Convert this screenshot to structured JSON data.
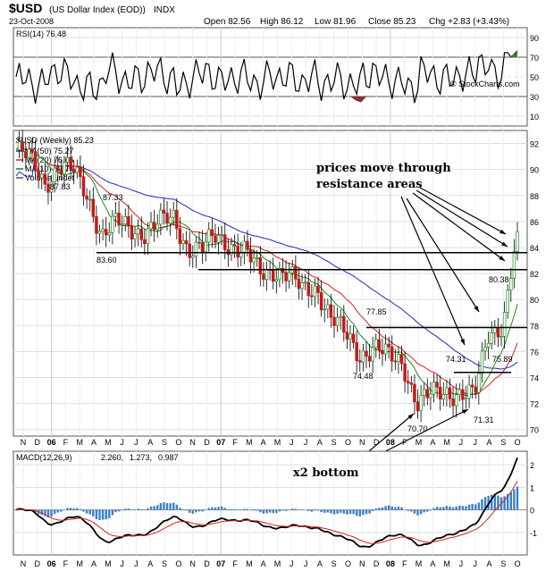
{
  "header": {
    "symbol": "$USD",
    "name": "(US Dollar Index (EOD))",
    "exchange": "INDX",
    "date": "23-Oct-2008",
    "open": "Open 82.56",
    "high": "High 86.12",
    "low": "Low 81.96",
    "close": "Close 85.23",
    "chg": "Chg +2.83 (+3.43%)",
    "watermark": "© StockCharts.com"
  },
  "rsi_panel": {
    "label": "RSI(14) 76.48",
    "ticks": [
      "90",
      "70",
      "50",
      "30",
      "10"
    ]
  },
  "price_panel": {
    "title": "$USD (Weekly) 85.23",
    "legend": [
      {
        "label": "MA(50) 75.27",
        "color": "#1f2bb8"
      },
      {
        "label": "MA(20) 76.65",
        "color": "#d62020"
      },
      {
        "label": "MA(10) 79.74",
        "color": "#1c8a1c"
      },
      {
        "label": "Volume undef",
        "color": "#555555"
      }
    ],
    "ticks": [
      "92",
      "90",
      "88",
      "86",
      "84",
      "82",
      "80",
      "78",
      "76",
      "74",
      "72",
      "70"
    ],
    "price_labels": [
      "87.83",
      "87.33",
      "83.60",
      "77.85",
      "74.48",
      "70.70",
      "74.31",
      "71.31",
      "75.89",
      "80.38"
    ],
    "annotation_top": [
      "prices move through",
      "resistance areas"
    ],
    "annotation_bottom": "x2 bottom"
  },
  "macd_panel": {
    "label": "MACD(12,26,9)",
    "v1": "2.260,",
    "v2": "1.273,",
    "v3": "0.987",
    "ticks": [
      "2",
      "1",
      "0",
      "-1"
    ]
  },
  "time_axis": [
    "N",
    "D",
    "06",
    "F",
    "M",
    "A",
    "M",
    "J",
    "J",
    "A",
    "S",
    "O",
    "N",
    "D",
    "07",
    "F",
    "M",
    "A",
    "M",
    "J",
    "J",
    "A",
    "S",
    "O",
    "N",
    "D",
    "08",
    "F",
    "M",
    "A",
    "M",
    "J",
    "J",
    "A",
    "S",
    "O"
  ],
  "colors": {
    "ma50": "#1f2bb8",
    "ma20": "#d62020",
    "ma10": "#1c8a1c",
    "up": "#1c8a1c",
    "down": "#c81818",
    "macd_hist": "#3a7fc8"
  },
  "chart_data": {
    "type": "line",
    "title": "$USD (Weekly)",
    "x_start": "Nov 2005",
    "x_end": "Oct 2008",
    "ylim": [
      69.5,
      93
    ],
    "close": [
      [
        "2005-11",
        91.5
      ],
      [
        "2005-12",
        90.7
      ],
      [
        "2006-01",
        89.0
      ],
      [
        "2006-02",
        90.3
      ],
      [
        "2006-03",
        89.8
      ],
      [
        "2006-04",
        88.0
      ],
      [
        "2006-05",
        85.0
      ],
      [
        "2006-06",
        85.8
      ],
      [
        "2006-07",
        85.5
      ],
      [
        "2006-08",
        85.2
      ],
      [
        "2006-09",
        85.8
      ],
      [
        "2006-10",
        86.3
      ],
      [
        "2006-11",
        84.0
      ],
      [
        "2006-12",
        83.8
      ],
      [
        "2007-01",
        84.9
      ],
      [
        "2007-02",
        84.3
      ],
      [
        "2007-03",
        83.6
      ],
      [
        "2007-04",
        82.0
      ],
      [
        "2007-05",
        82.4
      ],
      [
        "2007-06",
        81.9
      ],
      [
        "2007-07",
        80.6
      ],
      [
        "2007-08",
        81.0
      ],
      [
        "2007-09",
        78.6
      ],
      [
        "2007-10",
        77.2
      ],
      [
        "2007-11",
        75.8
      ],
      [
        "2007-12",
        76.4
      ],
      [
        "2008-01",
        75.5
      ],
      [
        "2008-02",
        75.2
      ],
      [
        "2008-03",
        72.1
      ],
      [
        "2008-04",
        72.6
      ],
      [
        "2008-05",
        72.9
      ],
      [
        "2008-06",
        72.9
      ],
      [
        "2008-07",
        72.5
      ],
      [
        "2008-08",
        77.4
      ],
      [
        "2008-09",
        78.2
      ],
      [
        "2008-10",
        85.2
      ]
    ],
    "ma_latest": {
      "MA(50)": 75.27,
      "MA(20)": 76.65,
      "MA(10)": 79.74
    },
    "rsi_latest": 76.48,
    "macd_latest": [
      2.26,
      1.273,
      0.987
    ],
    "resistance_levels": [
      83.6,
      82.3,
      77.85,
      74.4
    ]
  }
}
